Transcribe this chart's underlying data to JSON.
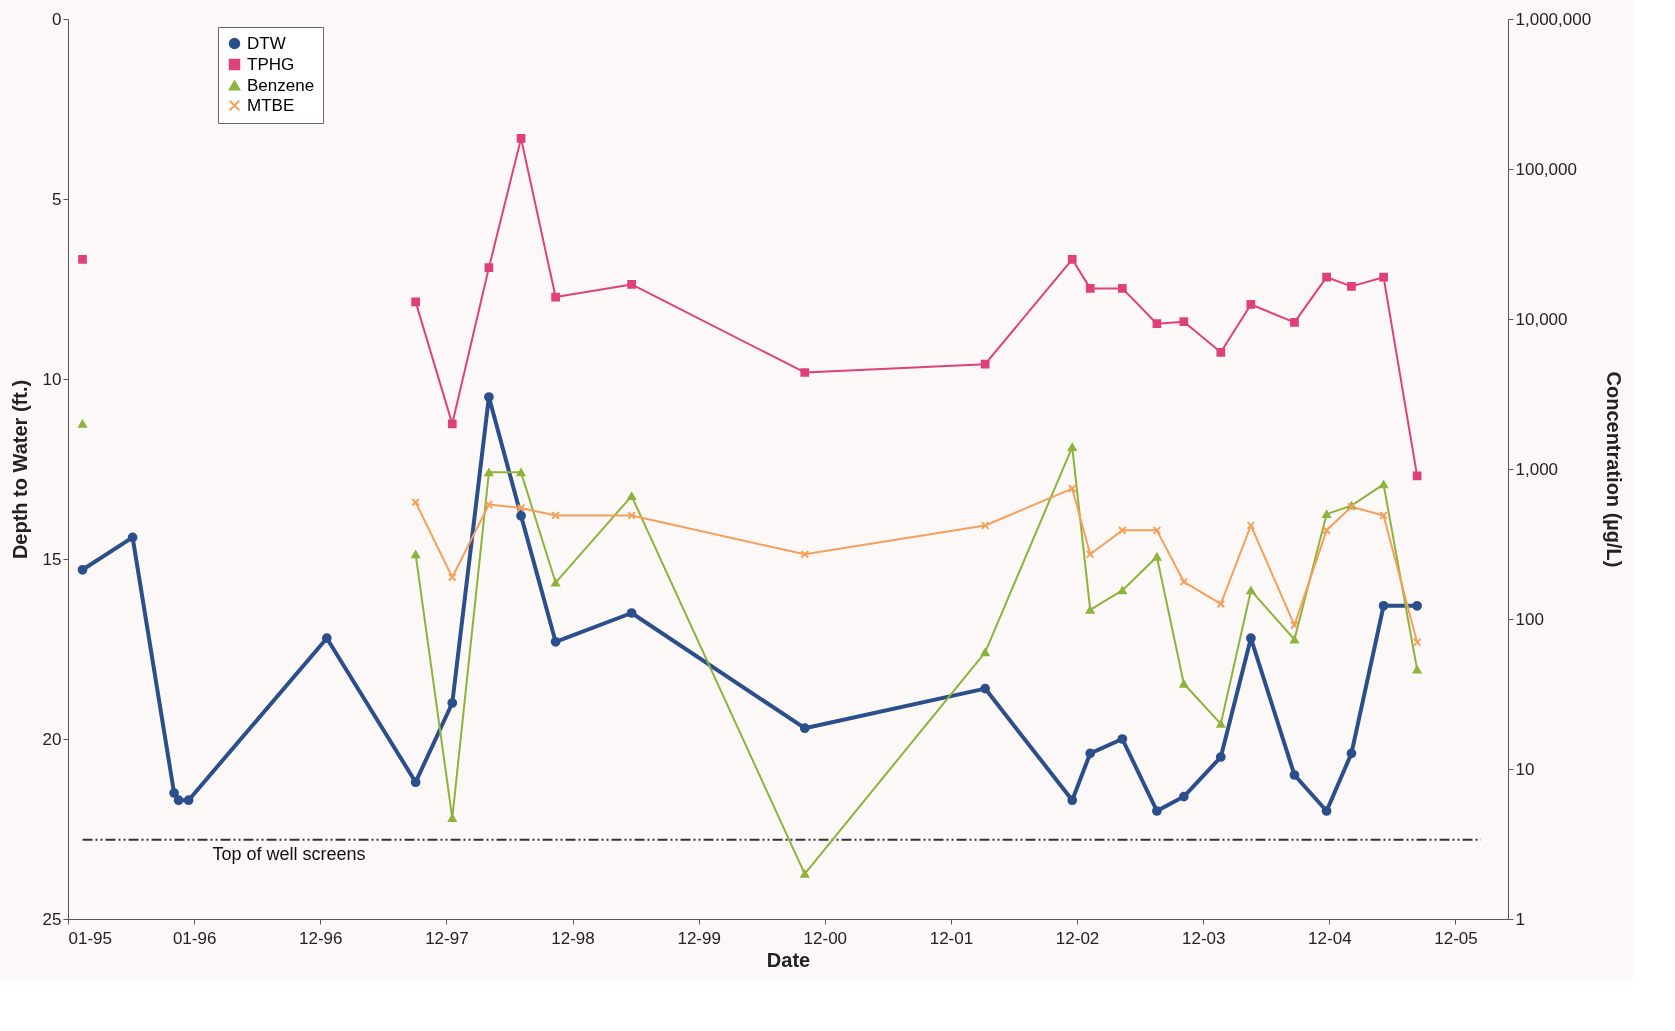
{
  "chart_data": {
    "type": "line",
    "xlabel": "Date",
    "ylabel": "Depth to Water (ft.)",
    "y2label": "Concentration (µg/L)",
    "x": [
      "1995-02-12",
      "1995-07-07",
      "1995-11-04",
      "1995-11-17",
      "1995-12-16",
      "1997-01-19",
      "1997-10-03",
      "1998-01-17",
      "1998-05-03",
      "1998-08-04",
      "1998-11-12",
      "1999-06-20",
      "2000-11-02",
      "2002-04-08",
      "2002-12-16",
      "2003-02-06",
      "2003-05-10",
      "2003-08-18",
      "2003-11-04",
      "2004-02-19",
      "2004-05-16",
      "2004-09-19",
      "2004-12-21",
      "2005-03-03",
      "2005-06-04",
      "2005-09-09"
    ],
    "series": [
      {
        "name": "DTW",
        "color": "#2b4f8a",
        "marker": "circle",
        "values": [
          15.3,
          14.4,
          21.5,
          21.7,
          21.7,
          17.2,
          21.2,
          19.0,
          10.5,
          13.8,
          17.3,
          16.5,
          19.7,
          18.6,
          21.7,
          20.4,
          20.0,
          22.0,
          21.6,
          20.5,
          17.2,
          21.0,
          22.0,
          20.4,
          16.3,
          16.3
        ]
      },
      {
        "name": "TPHG",
        "color": "#e0407a",
        "marker": "square",
        "axis": "y2",
        "values": [
          25000,
          null,
          null,
          null,
          null,
          null,
          13000,
          2000,
          22000,
          160000,
          14000,
          17000,
          4400,
          5000,
          25000,
          16000,
          16000,
          9300,
          9600,
          6000,
          12500,
          9500,
          19000,
          16500,
          19000,
          900
        ]
      },
      {
        "name": "Benzene",
        "color": "#8db33a",
        "marker": "triangle",
        "axis": "y2",
        "values": [
          2000,
          null,
          null,
          null,
          null,
          null,
          270,
          4.7,
          950,
          950,
          175,
          660,
          2.0,
          60,
          1400,
          115,
          155,
          260,
          37,
          20,
          155,
          73,
          500,
          570,
          790,
          46
        ]
      },
      {
        "name": "MTBE",
        "color": "#f5a05a",
        "marker": "cross",
        "axis": "y2",
        "values": [
          null,
          null,
          null,
          null,
          null,
          null,
          600,
          190,
          580,
          550,
          490,
          490,
          270,
          420,
          740,
          270,
          390,
          390,
          177,
          126,
          420,
          91,
          390,
          560,
          490,
          70
        ]
      }
    ],
    "xlim": [
      "1995-01-01",
      "2006-05-30"
    ],
    "xticks": [
      {
        "value": "1995-01-01",
        "label": "01-95"
      },
      {
        "value": "1996-01-01",
        "label": "01-96"
      },
      {
        "value": "1996-12-31",
        "label": "12-96"
      },
      {
        "value": "1997-12-31",
        "label": "12-97"
      },
      {
        "value": "1998-12-31",
        "label": "12-98"
      },
      {
        "value": "1999-12-31",
        "label": "12-99"
      },
      {
        "value": "2000-12-30",
        "label": "12-00"
      },
      {
        "value": "2001-12-30",
        "label": "12-01"
      },
      {
        "value": "2002-12-30",
        "label": "12-02"
      },
      {
        "value": "2003-12-30",
        "label": "12-03"
      },
      {
        "value": "2004-12-29",
        "label": "12-04"
      },
      {
        "value": "2005-12-29",
        "label": "12-05"
      }
    ],
    "ylim": [
      25,
      0
    ],
    "yticks": [
      0,
      5,
      10,
      15,
      20,
      25
    ],
    "y2lim": [
      1,
      1000000
    ],
    "y2ticks": [
      1,
      10,
      100,
      {
        "value": 1000,
        "label": "1,000"
      },
      {
        "value": 10000,
        "label": "10,000"
      },
      {
        "value": 100000,
        "label": "100,000"
      },
      {
        "value": 1000000,
        "label": "1,000,000"
      }
    ],
    "log": "y2",
    "ref_lines": [
      {
        "axis": "y",
        "value": 22.8,
        "label": "Top of well screens",
        "color": "#333333",
        "line_style": "dashed"
      }
    ],
    "grid": false,
    "legend": "top left",
    "line_style": "solid"
  }
}
